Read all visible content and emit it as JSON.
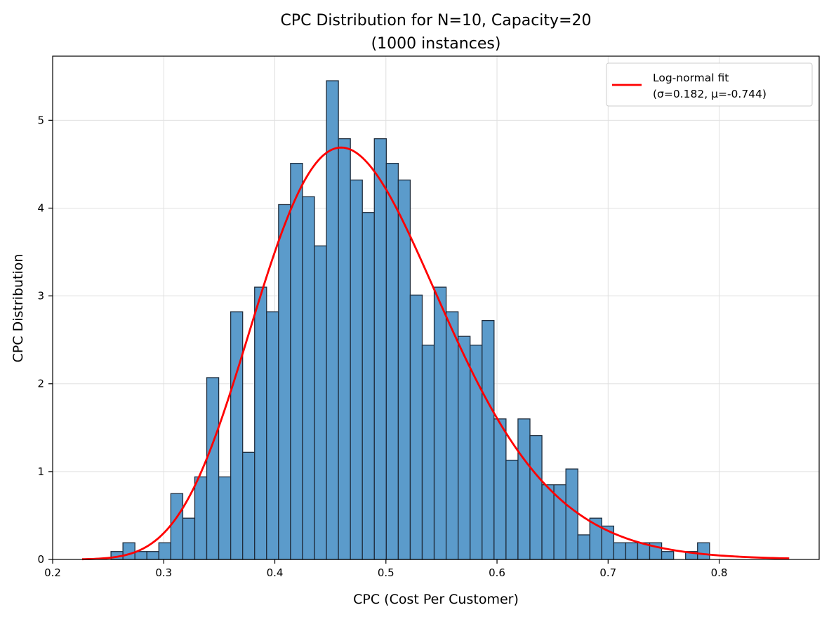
{
  "chart_data": {
    "type": "bar",
    "title_line1": "CPC Distribution for N=10, Capacity=20",
    "title_line2": "(1000 instances)",
    "xlabel": "CPC (Cost Per Customer)",
    "ylabel": "CPC Distribution",
    "xlim": [
      0.2,
      0.89
    ],
    "ylim": [
      0,
      5.73
    ],
    "xticks": [
      0.2,
      0.3,
      0.4,
      0.5,
      0.6,
      0.7,
      0.8
    ],
    "xtick_labels": [
      "0.2",
      "0.3",
      "0.4",
      "0.5",
      "0.6",
      "0.7",
      "0.8"
    ],
    "yticks": [
      0,
      1,
      2,
      3,
      4,
      5
    ],
    "ytick_labels": [
      "0",
      "1",
      "2",
      "3",
      "4",
      "5"
    ],
    "grid": true,
    "bin_start": 0.2525,
    "bin_width": 0.010776,
    "densities": [
      0.09,
      0.19,
      0.09,
      0.09,
      0.19,
      0.75,
      0.47,
      0.94,
      2.07,
      0.94,
      2.82,
      1.22,
      3.1,
      2.82,
      4.04,
      4.51,
      4.13,
      3.57,
      5.45,
      4.79,
      4.32,
      3.95,
      4.79,
      4.51,
      4.32,
      3.01,
      2.44,
      3.1,
      2.82,
      2.54,
      2.44,
      2.72,
      1.6,
      1.13,
      1.6,
      1.41,
      0.85,
      0.85,
      1.03,
      0.28,
      0.47,
      0.38,
      0.19,
      0.19,
      0.19,
      0.19,
      0.09,
      0.0,
      0.09,
      0.19
    ],
    "bar_color": "#5b9bcb",
    "bar_edge_color": "#1f2d3d",
    "fit": {
      "name": "Log-normal fit",
      "params_label": "(σ=0.182, μ=-0.744)",
      "sigma": 0.182,
      "mu": -0.744,
      "x_range": [
        0.2265,
        0.863
      ],
      "color": "#ff0000"
    },
    "legend_position": "top-right"
  }
}
